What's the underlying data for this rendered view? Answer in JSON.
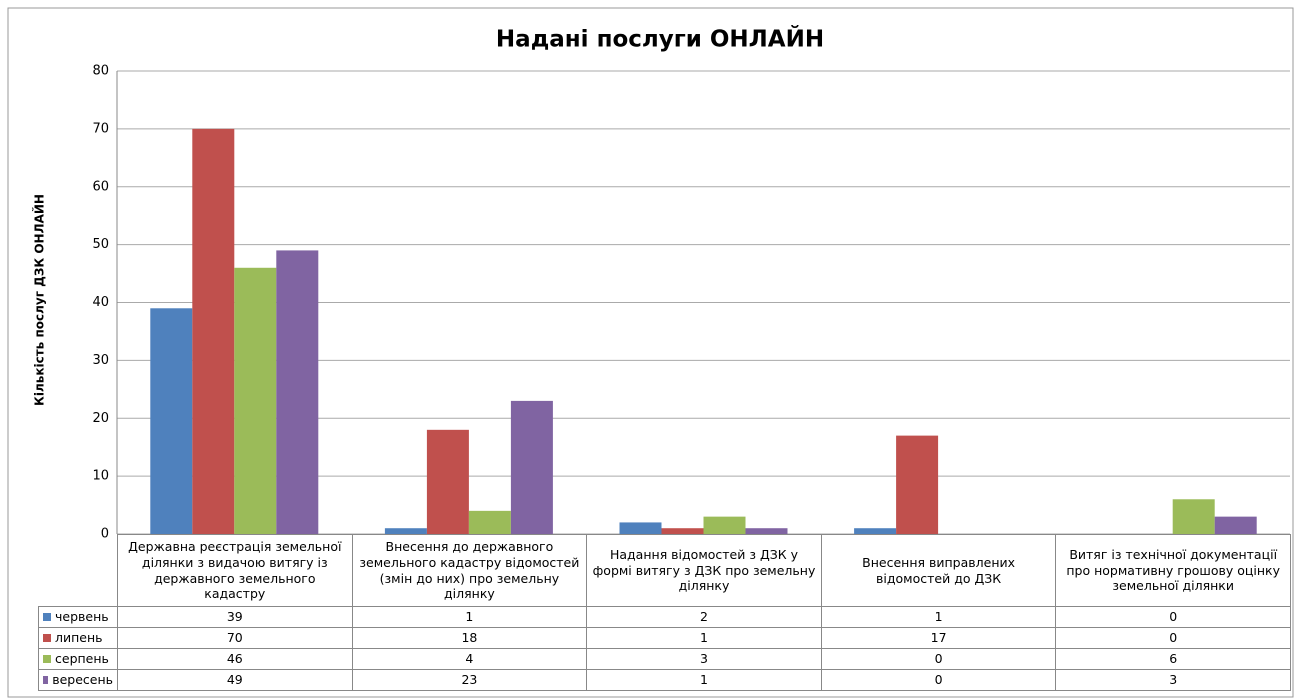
{
  "chart_data": {
    "type": "bar",
    "title": "Надані послуги ОНЛАЙН",
    "y_label": "Кількість послуг ДЗК ОНЛАЙН",
    "categories": [
      "Державна реєстрація земельної ділянки з видачою витягу із державного земельного кадастру",
      "Внесення до державного земельного кадастру відомостей (змін до них) про земельну ділянку",
      "Надання відомостей з ДЗК у формі витягу з ДЗК про земельну ділянку",
      "Внесення виправлених відомостей до ДЗК",
      "Витяг із технічної документації про нормативну грошову оцінку земельної ділянки"
    ],
    "series": [
      {
        "name": "червень",
        "color": "#4f81bd",
        "values": [
          39,
          1,
          2,
          1,
          0
        ]
      },
      {
        "name": "липень",
        "color": "#c0504d",
        "values": [
          70,
          18,
          1,
          17,
          0
        ]
      },
      {
        "name": "серпень",
        "color": "#9bbb59",
        "values": [
          46,
          4,
          3,
          0,
          6
        ]
      },
      {
        "name": "вересень",
        "color": "#8064a2",
        "values": [
          49,
          23,
          1,
          0,
          3
        ]
      }
    ],
    "ylim": [
      0,
      80
    ],
    "yticks": [
      0,
      10,
      20,
      30,
      40,
      50,
      60,
      70,
      80
    ],
    "grid": true
  }
}
